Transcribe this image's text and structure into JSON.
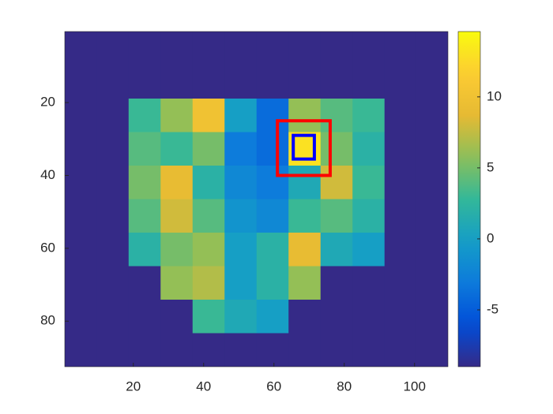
{
  "chart_data": {
    "type": "heatmap",
    "x": [
      5.0,
      14.1,
      23.2,
      32.3,
      41.4,
      50.5,
      59.6,
      68.7,
      77.8,
      86.9,
      96.0,
      105.0
    ],
    "y": [
      5.1,
      14.3,
      23.5,
      32.7,
      41.9,
      51.1,
      60.3,
      69.5,
      78.7,
      87.9
    ],
    "values": [
      [
        -9,
        -9,
        -9,
        -9,
        -9,
        -9,
        -9,
        -9,
        -9,
        -9,
        -9,
        -9
      ],
      [
        -9,
        -9,
        -9,
        -9,
        -9,
        -9,
        -9,
        -9,
        -9,
        -9,
        -9,
        -9
      ],
      [
        -9,
        -9,
        3,
        6,
        10,
        0,
        -4,
        6,
        4,
        3,
        -9,
        -9
      ],
      [
        -9,
        -9,
        4,
        3,
        5,
        -3,
        -4,
        13,
        5,
        2,
        -9,
        -9
      ],
      [
        -9,
        -9,
        5,
        9,
        2,
        -2,
        -3,
        1,
        8,
        3,
        -9,
        -9
      ],
      [
        -9,
        -9,
        4,
        8,
        4,
        -1,
        -2,
        3,
        4,
        2,
        -9,
        -9
      ],
      [
        -9,
        -9,
        2,
        5,
        6,
        0,
        2,
        9,
        1,
        0,
        -9,
        -9
      ],
      [
        -9,
        -9,
        -9,
        6,
        7,
        0,
        2,
        6,
        -9,
        -9,
        -9,
        -9
      ],
      [
        -9,
        -9,
        -9,
        -9,
        3,
        1,
        0,
        -9,
        -9,
        -9,
        -9,
        -9
      ],
      [
        -9,
        -9,
        -9,
        -9,
        -9,
        -9,
        -9,
        -9,
        -9,
        -9,
        -9,
        -9
      ]
    ],
    "xlim": [
      0.5,
      109.5
    ],
    "ylim": [
      0.5,
      92.5
    ],
    "xticks": [
      20,
      40,
      60,
      80,
      100
    ],
    "yticks": [
      20,
      40,
      60,
      80
    ],
    "clim": [
      -9,
      14.6
    ],
    "cticks": [
      -5,
      0,
      5,
      10
    ],
    "rectangles": [
      {
        "color": "#ff0000",
        "x": [
          61,
          76
        ],
        "y": [
          25,
          40
        ]
      },
      {
        "color": "#0000ff",
        "x": [
          65.5,
          71.5
        ],
        "y": [
          29,
          35.5
        ]
      }
    ]
  }
}
